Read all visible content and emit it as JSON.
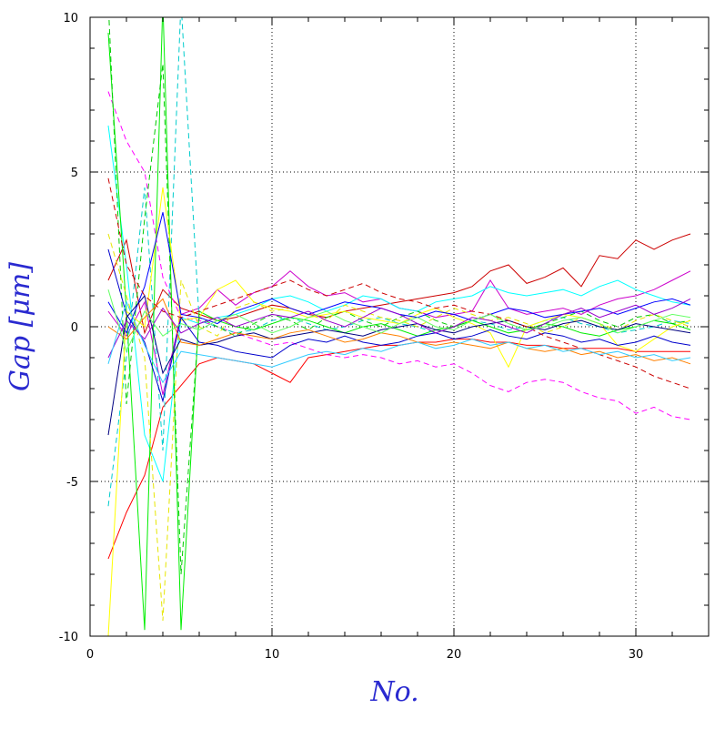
{
  "chart_data": {
    "type": "line",
    "title": "",
    "xlabel": "No.",
    "ylabel": "Gap [μm]",
    "xlim": [
      0,
      34
    ],
    "ylim": [
      -10,
      10
    ],
    "x_ticks": [
      0,
      10,
      20,
      30
    ],
    "x_tick_labels": [
      "0",
      "10",
      "20",
      "30"
    ],
    "y_ticks": [
      -10,
      -5,
      0,
      5,
      10
    ],
    "y_tick_labels": [
      "-10",
      "-5",
      "0",
      "5",
      "10"
    ],
    "grid": true,
    "legend": "none",
    "x": [
      1,
      2,
      3,
      4,
      5,
      6,
      7,
      8,
      9,
      10,
      11,
      12,
      13,
      14,
      15,
      16,
      17,
      18,
      19,
      20,
      21,
      22,
      23,
      24,
      25,
      26,
      27,
      28,
      29,
      30,
      31,
      32,
      33
    ],
    "series": [
      {
        "color": "#ff0000",
        "dash": false,
        "values": [
          -7.5,
          -6.0,
          -4.8,
          -2.6,
          -1.9,
          -1.2,
          -1.0,
          -1.1,
          -1.2,
          -1.5,
          -1.8,
          -1.0,
          -0.9,
          -0.8,
          -0.7,
          -0.6,
          -0.6,
          -0.5,
          -0.5,
          -0.4,
          -0.4,
          -0.5,
          -0.5,
          -0.6,
          -0.6,
          -0.7,
          -0.7,
          -0.7,
          -0.7,
          -0.8,
          -0.8,
          -0.8,
          -0.8
        ]
      },
      {
        "color": "#cc0000",
        "dash": false,
        "values": [
          1.5,
          2.8,
          -0.2,
          1.2,
          0.6,
          0.4,
          0.2,
          0.3,
          0.5,
          0.7,
          0.6,
          0.4,
          0.3,
          0.5,
          0.6,
          0.7,
          0.8,
          0.9,
          1.0,
          1.1,
          1.3,
          1.8,
          2.0,
          1.4,
          1.6,
          1.9,
          1.3,
          2.3,
          2.2,
          2.8,
          2.5,
          2.8,
          3.0
        ]
      },
      {
        "color": "#ff00ff",
        "dash": true,
        "values": [
          7.6,
          6.0,
          5.0,
          1.6,
          0.3,
          0.2,
          0.0,
          -0.2,
          -0.4,
          -0.6,
          -0.5,
          -0.7,
          -0.9,
          -1.0,
          -0.9,
          -1.0,
          -1.2,
          -1.1,
          -1.3,
          -1.2,
          -1.5,
          -1.9,
          -2.1,
          -1.8,
          -1.7,
          -1.8,
          -2.1,
          -2.3,
          -2.4,
          -2.8,
          -2.6,
          -2.9,
          -3.0
        ]
      },
      {
        "color": "#cc00cc",
        "dash": false,
        "values": [
          0.5,
          -0.3,
          0.8,
          -2.2,
          0.4,
          0.6,
          1.2,
          0.7,
          1.1,
          1.3,
          1.8,
          1.3,
          1.0,
          1.1,
          0.8,
          0.9,
          0.6,
          0.5,
          0.3,
          0.4,
          0.5,
          1.5,
          0.6,
          0.4,
          0.5,
          0.6,
          0.4,
          0.7,
          0.9,
          1.0,
          1.2,
          1.5,
          1.8
        ]
      },
      {
        "color": "#00ffff",
        "dash": false,
        "values": [
          6.5,
          2.0,
          -3.5,
          -5.0,
          0.3,
          0.1,
          0.3,
          0.4,
          0.6,
          0.9,
          1.0,
          0.8,
          0.5,
          0.7,
          1.0,
          0.9,
          0.6,
          0.5,
          0.8,
          0.9,
          1.0,
          1.3,
          1.1,
          1.0,
          1.1,
          1.2,
          1.0,
          1.3,
          1.5,
          1.2,
          1.0,
          0.8,
          0.7
        ]
      },
      {
        "color": "#00cccc",
        "dash": true,
        "values": [
          -5.8,
          -1.0,
          4.5,
          -4.0,
          10.5,
          0.2,
          0.0,
          -0.2,
          -0.1,
          0.2,
          0.3,
          0.1,
          -0.1,
          0.0,
          0.2,
          0.3,
          0.1,
          0.0,
          -0.2,
          0.0,
          0.2,
          0.1,
          -0.1,
          0.0,
          0.2,
          0.3,
          0.1,
          0.0,
          -0.2,
          -0.1,
          0.0,
          0.2,
          0.1
        ]
      },
      {
        "color": "#00ee00",
        "dash": false,
        "values": [
          9.5,
          0.5,
          -9.8,
          10.5,
          -9.8,
          0.5,
          0.2,
          0.0,
          -0.1,
          0.1,
          0.3,
          0.2,
          0.0,
          -0.2,
          0.0,
          0.1,
          -0.1,
          -0.3,
          -0.1,
          0.0,
          0.2,
          0.0,
          -0.2,
          -0.1,
          0.1,
          0.0,
          -0.2,
          -0.3,
          -0.1,
          0.0,
          0.2,
          0.1,
          -0.1
        ]
      },
      {
        "color": "#00cc00",
        "dash": true,
        "values": [
          10.5,
          -2.5,
          3.5,
          8.5,
          -8.0,
          0.3,
          0.0,
          -0.3,
          0.1,
          0.4,
          0.2,
          -0.1,
          0.3,
          0.5,
          0.2,
          0.0,
          0.3,
          0.5,
          0.2,
          0.0,
          0.2,
          0.4,
          0.1,
          -0.1,
          0.1,
          0.3,
          0.5,
          0.2,
          0.0,
          0.3,
          0.4,
          0.1,
          0.2
        ]
      },
      {
        "color": "#ffff00",
        "dash": false,
        "values": [
          -10.0,
          0.5,
          0.0,
          4.5,
          0.2,
          0.3,
          1.2,
          1.5,
          0.8,
          0.6,
          0.5,
          0.3,
          0.4,
          0.5,
          0.3,
          0.2,
          0.1,
          0.4,
          0.6,
          0.3,
          0.1,
          -0.2,
          -1.3,
          0.0,
          0.2,
          0.4,
          0.3,
          0.1,
          -0.6,
          -0.8,
          -0.4,
          0.0,
          0.2
        ]
      },
      {
        "color": "#e6e600",
        "dash": true,
        "values": [
          3.0,
          1.0,
          -1.0,
          -9.5,
          1.5,
          0.0,
          -0.3,
          0.6,
          0.8,
          0.5,
          0.6,
          0.4,
          0.2,
          0.7,
          0.5,
          0.3,
          0.2,
          0.0,
          0.3,
          0.6,
          0.4,
          0.2,
          0.3,
          0.1,
          -0.2,
          0.0,
          0.3,
          0.1,
          -0.1,
          0.2,
          0.4,
          0.2,
          0.0
        ]
      },
      {
        "color": "#0000ff",
        "dash": false,
        "values": [
          0.8,
          -0.2,
          1.3,
          3.7,
          0.4,
          0.3,
          0.1,
          0.5,
          0.7,
          0.9,
          0.6,
          0.4,
          0.6,
          0.8,
          0.7,
          0.6,
          0.4,
          0.3,
          0.5,
          0.4,
          0.2,
          0.4,
          0.6,
          0.5,
          0.3,
          0.4,
          0.5,
          0.6,
          0.4,
          0.6,
          0.8,
          0.9,
          0.7
        ]
      },
      {
        "color": "#0000cc",
        "dash": false,
        "values": [
          2.5,
          0.4,
          -0.5,
          -2.4,
          0.3,
          -0.5,
          -0.6,
          -0.8,
          -0.9,
          -1.0,
          -0.6,
          -0.4,
          -0.5,
          -0.3,
          -0.5,
          -0.6,
          -0.5,
          -0.3,
          -0.2,
          -0.4,
          -0.3,
          -0.1,
          -0.3,
          -0.4,
          -0.2,
          -0.3,
          -0.5,
          -0.4,
          -0.6,
          -0.5,
          -0.3,
          -0.5,
          -0.6
        ]
      },
      {
        "color": "#000080",
        "dash": false,
        "values": [
          -3.5,
          0.3,
          1.0,
          -1.5,
          -0.4,
          -0.6,
          -0.5,
          -0.3,
          -0.2,
          -0.4,
          -0.3,
          -0.2,
          -0.1,
          -0.2,
          -0.3,
          -0.1,
          0.0,
          0.1,
          -0.1,
          -0.2,
          0.0,
          0.1,
          0.2,
          0.0,
          -0.1,
          0.1,
          0.2,
          0.0,
          -0.1,
          0.1,
          0.0,
          -0.1,
          -0.2
        ]
      },
      {
        "color": "#ff8000",
        "dash": false,
        "values": [
          0.0,
          -0.4,
          0.3,
          0.9,
          -0.5,
          -0.6,
          -0.4,
          -0.2,
          -0.3,
          -0.4,
          -0.2,
          -0.1,
          -0.3,
          -0.5,
          -0.4,
          -0.2,
          -0.3,
          -0.5,
          -0.6,
          -0.5,
          -0.6,
          -0.7,
          -0.5,
          -0.7,
          -0.8,
          -0.7,
          -0.9,
          -0.8,
          -1.0,
          -0.9,
          -1.1,
          -1.0,
          -1.2
        ]
      },
      {
        "color": "#cc0000",
        "dash": true,
        "values": [
          4.8,
          2.0,
          1.0,
          0.5,
          0.3,
          0.5,
          0.7,
          0.9,
          1.1,
          1.3,
          1.5,
          1.2,
          1.0,
          1.2,
          1.4,
          1.1,
          0.9,
          0.8,
          0.6,
          0.7,
          0.5,
          0.4,
          0.2,
          0.0,
          -0.3,
          -0.5,
          -0.7,
          -0.9,
          -1.1,
          -1.3,
          -1.6,
          -1.8,
          -2.0
        ]
      },
      {
        "color": "#9900cc",
        "dash": false,
        "values": [
          -1.0,
          0.2,
          -0.4,
          0.6,
          -0.2,
          0.1,
          0.3,
          0.0,
          0.2,
          0.4,
          0.3,
          0.5,
          0.2,
          0.0,
          0.3,
          0.6,
          0.4,
          0.1,
          -0.2,
          0.0,
          0.3,
          0.2,
          0.0,
          -0.2,
          0.1,
          0.4,
          0.6,
          0.3,
          0.5,
          0.7,
          0.4,
          0.6,
          0.9
        ]
      },
      {
        "color": "#33ccff",
        "dash": false,
        "values": [
          -1.2,
          0.8,
          -0.6,
          -1.8,
          -0.8,
          -0.9,
          -1.0,
          -1.1,
          -1.2,
          -1.3,
          -1.1,
          -0.9,
          -0.8,
          -0.9,
          -0.7,
          -0.8,
          -0.6,
          -0.5,
          -0.7,
          -0.6,
          -0.4,
          -0.6,
          -0.5,
          -0.7,
          -0.6,
          -0.8,
          -0.7,
          -0.9,
          -0.8,
          -1.0,
          -0.9,
          -1.1,
          -1.0
        ]
      },
      {
        "color": "#66ff66",
        "dash": false,
        "values": [
          1.2,
          -0.8,
          0.5,
          -0.3,
          0.1,
          -0.1,
          0.2,
          0.4,
          0.1,
          -0.2,
          0.0,
          0.3,
          0.5,
          0.2,
          0.0,
          -0.2,
          0.1,
          0.3,
          0.0,
          -0.1,
          0.2,
          0.4,
          0.1,
          -0.1,
          0.0,
          0.2,
          0.3,
          0.1,
          -0.2,
          0.0,
          0.2,
          0.4,
          0.3
        ]
      }
    ]
  }
}
